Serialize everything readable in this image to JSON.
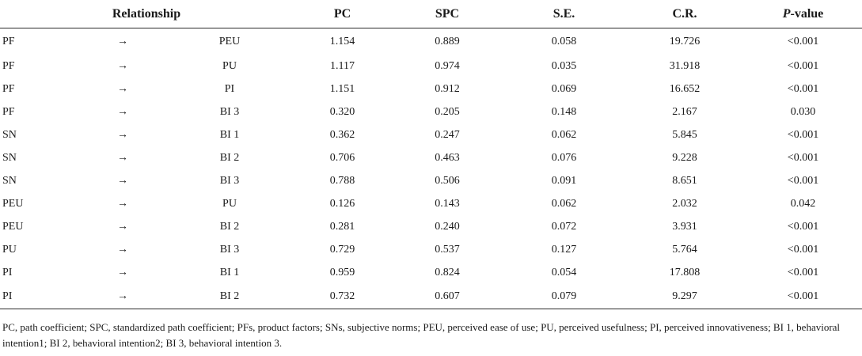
{
  "table": {
    "headers": {
      "relationship": "Relationship",
      "pc": "PC",
      "spc": "SPC",
      "se": "S.E.",
      "cr": "C.R.",
      "pvalue_italic": "P",
      "pvalue_rest": "-value"
    },
    "rows": [
      {
        "from": "PF",
        "arrow": "→",
        "to": "PEU",
        "pc": "1.154",
        "spc": "0.889",
        "se": "0.058",
        "cr": "19.726",
        "p": "<0.001"
      },
      {
        "from": "PF",
        "arrow": "→",
        "to": "PU",
        "pc": "1.117",
        "spc": "0.974",
        "se": "0.035",
        "cr": "31.918",
        "p": "<0.001"
      },
      {
        "from": "PF",
        "arrow": "→",
        "to": "PI",
        "pc": "1.151",
        "spc": "0.912",
        "se": "0.069",
        "cr": "16.652",
        "p": "<0.001"
      },
      {
        "from": "PF",
        "arrow": "→",
        "to": "BI 3",
        "pc": "0.320",
        "spc": "0.205",
        "se": "0.148",
        "cr": "2.167",
        "p": "0.030"
      },
      {
        "from": "SN",
        "arrow": "→",
        "to": "BI 1",
        "pc": "0.362",
        "spc": "0.247",
        "se": "0.062",
        "cr": "5.845",
        "p": "<0.001"
      },
      {
        "from": "SN",
        "arrow": "→",
        "to": "BI 2",
        "pc": "0.706",
        "spc": "0.463",
        "se": "0.076",
        "cr": "9.228",
        "p": "<0.001"
      },
      {
        "from": "SN",
        "arrow": "→",
        "to": "BI 3",
        "pc": "0.788",
        "spc": "0.506",
        "se": "0.091",
        "cr": "8.651",
        "p": "<0.001"
      },
      {
        "from": "PEU",
        "arrow": "→",
        "to": "PU",
        "pc": "0.126",
        "spc": "0.143",
        "se": "0.062",
        "cr": "2.032",
        "p": "0.042"
      },
      {
        "from": "PEU",
        "arrow": "→",
        "to": "BI 2",
        "pc": "0.281",
        "spc": "0.240",
        "se": "0.072",
        "cr": "3.931",
        "p": "<0.001"
      },
      {
        "from": "PU",
        "arrow": "→",
        "to": "BI 3",
        "pc": "0.729",
        "spc": "0.537",
        "se": "0.127",
        "cr": "5.764",
        "p": "<0.001"
      },
      {
        "from": "PI",
        "arrow": "→",
        "to": "BI 1",
        "pc": "0.959",
        "spc": "0.824",
        "se": "0.054",
        "cr": "17.808",
        "p": "<0.001"
      },
      {
        "from": "PI",
        "arrow": "→",
        "to": "BI 2",
        "pc": "0.732",
        "spc": "0.607",
        "se": "0.079",
        "cr": "9.297",
        "p": "<0.001"
      }
    ]
  },
  "footnote": "PC, path coefficient; SPC, standardized path coefficient; PFs, product factors; SNs, subjective norms; PEU, perceived ease of use; PU, perceived usefulness; PI, perceived innovativeness; BI 1, behavioral intention1; BI 2, behavioral intention2; BI 3, behavioral intention 3."
}
